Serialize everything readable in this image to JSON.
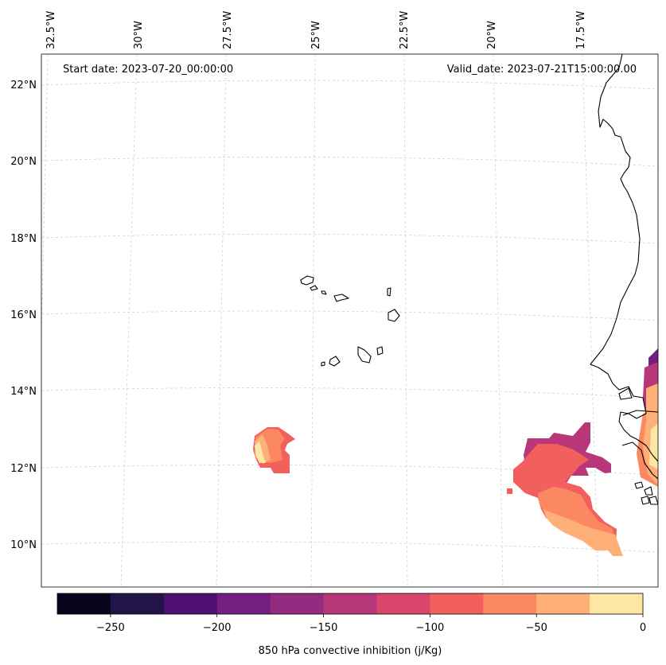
{
  "map": {
    "start_label": "Start date: 2023-07-20_00:00:00",
    "valid_label": "Valid_date: 2023-07-21T15:00:00.00",
    "lon_ticks": [
      "32.5°W",
      "30°W",
      "27.5°W",
      "25°W",
      "22.5°W",
      "20°W",
      "17.5°W"
    ],
    "lat_ticks": [
      "22°N",
      "20°N",
      "18°N",
      "16°N",
      "14°N",
      "12°N",
      "10°N"
    ]
  },
  "colorbar": {
    "label": "850 hPa convective inhibition (j/Kg)",
    "tick_labels": [
      "−250",
      "−200",
      "−150",
      "−100",
      "−50",
      "0"
    ],
    "levels": [
      -275,
      -250,
      -225,
      -200,
      -175,
      -150,
      -125,
      -100,
      -75,
      -50,
      -25,
      0
    ],
    "colors": [
      "#07061c",
      "#211447",
      "#4e0f72",
      "#731e81",
      "#932b80",
      "#b73779",
      "#d9466b",
      "#f1605d",
      "#fb8861",
      "#feb078",
      "#fee7a5"
    ]
  },
  "colors": {
    "gridline": "#c8c8c8",
    "coastline": "#000000"
  }
}
